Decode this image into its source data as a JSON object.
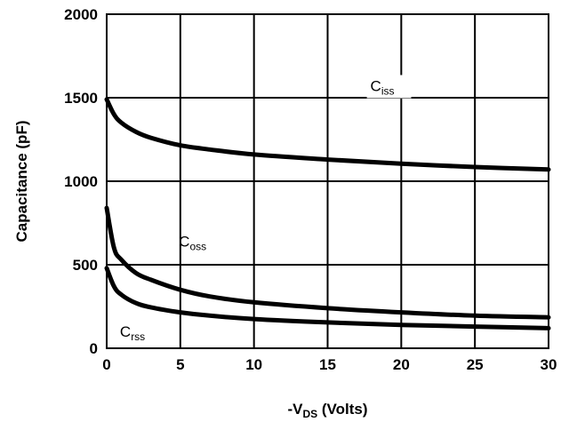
{
  "chart_data": {
    "type": "line",
    "title": "",
    "xlabel": "-V",
    "xlabel_sub": "DS",
    "xlabel_suffix": " (Volts)",
    "ylabel": "Capacitance (pF)",
    "xlim": [
      0,
      30
    ],
    "ylim": [
      0,
      2000
    ],
    "xticks": [
      0,
      5,
      10,
      15,
      20,
      25,
      30
    ],
    "yticks": [
      0,
      500,
      1000,
      1500,
      2000
    ],
    "grid": true,
    "line_color": "#000000",
    "series": [
      {
        "name": "Ciss",
        "label_main": "C",
        "label_sub": "iss",
        "x": [
          0,
          0.5,
          1,
          2,
          3,
          5,
          7,
          10,
          15,
          20,
          25,
          30
        ],
        "y": [
          1490,
          1400,
          1350,
          1295,
          1260,
          1215,
          1190,
          1160,
          1130,
          1105,
          1085,
          1070
        ]
      },
      {
        "name": "Coss",
        "label_main": "C",
        "label_sub": "oss",
        "x": [
          0,
          0.5,
          1,
          2,
          3,
          5,
          7,
          10,
          15,
          20,
          25,
          30
        ],
        "y": [
          840,
          600,
          530,
          450,
          410,
          350,
          310,
          275,
          240,
          215,
          195,
          185
        ]
      },
      {
        "name": "Crss",
        "label_main": "C",
        "label_sub": "rss",
        "x": [
          0,
          0.5,
          1,
          2,
          3,
          5,
          7,
          10,
          15,
          20,
          25,
          30
        ],
        "y": [
          480,
          370,
          320,
          270,
          245,
          215,
          195,
          175,
          155,
          140,
          130,
          120
        ]
      }
    ]
  }
}
